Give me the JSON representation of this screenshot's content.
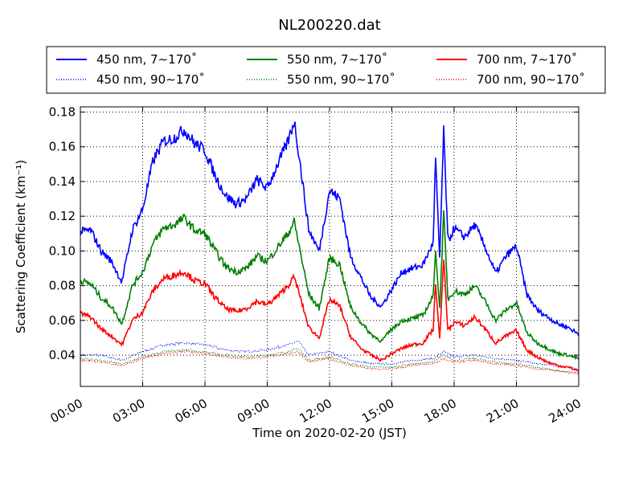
{
  "chart_data": {
    "type": "line",
    "title": "NL200220.dat",
    "xlabel": "Time on 2020-02-20 (JST)",
    "ylabel": "Scattering Coefficient (km⁻¹)",
    "xlim": [
      0,
      24
    ],
    "ylim": [
      0.022,
      0.183
    ],
    "x_ticks": [
      "00:00",
      "03:00",
      "06:00",
      "09:00",
      "12:00",
      "15:00",
      "18:00",
      "21:00",
      "24:00"
    ],
    "y_ticks": [
      "0.04",
      "0.06",
      "0.08",
      "0.10",
      "0.12",
      "0.14",
      "0.16",
      "0.18"
    ],
    "grid": true,
    "legend_position": "top",
    "series": [
      {
        "name": "450 nm, 7∼170˚",
        "color": "#0000ff",
        "style": "solid",
        "x": [
          0,
          0.5,
          1,
          1.5,
          2,
          2.5,
          3,
          3.5,
          4,
          4.5,
          5,
          5.5,
          6,
          6.5,
          7,
          7.5,
          8,
          8.5,
          9,
          9.5,
          10,
          10.3,
          10.5,
          11,
          11.5,
          12,
          12.5,
          13,
          13.5,
          14,
          14.5,
          15,
          15.5,
          16,
          16.5,
          17,
          17.1,
          17.3,
          17.5,
          17.7,
          18,
          18.5,
          19,
          19.5,
          20,
          20.5,
          21,
          21.5,
          22,
          22.5,
          23,
          23.5,
          24
        ],
        "y": [
          0.111,
          0.112,
          0.1,
          0.094,
          0.082,
          0.112,
          0.124,
          0.152,
          0.163,
          0.165,
          0.17,
          0.162,
          0.158,
          0.143,
          0.132,
          0.127,
          0.13,
          0.141,
          0.136,
          0.15,
          0.163,
          0.175,
          0.158,
          0.112,
          0.1,
          0.135,
          0.13,
          0.097,
          0.085,
          0.073,
          0.068,
          0.078,
          0.088,
          0.09,
          0.092,
          0.105,
          0.155,
          0.095,
          0.17,
          0.105,
          0.113,
          0.108,
          0.115,
          0.102,
          0.087,
          0.097,
          0.103,
          0.075,
          0.066,
          0.062,
          0.058,
          0.056,
          0.052
        ]
      },
      {
        "name": "550 nm, 7∼170˚",
        "color": "#008000",
        "style": "solid",
        "x": [
          0,
          0.5,
          1,
          1.5,
          2,
          2.5,
          3,
          3.5,
          4,
          4.5,
          5,
          5.5,
          6,
          6.5,
          7,
          7.5,
          8,
          8.5,
          9,
          9.5,
          10,
          10.3,
          10.5,
          11,
          11.5,
          12,
          12.5,
          13,
          13.5,
          14,
          14.5,
          15,
          15.5,
          16,
          16.5,
          17,
          17.1,
          17.3,
          17.5,
          17.7,
          18,
          18.5,
          19,
          19.5,
          20,
          20.5,
          21,
          21.5,
          22,
          22.5,
          23,
          23.5,
          24
        ],
        "y": [
          0.083,
          0.081,
          0.073,
          0.068,
          0.058,
          0.08,
          0.088,
          0.104,
          0.113,
          0.115,
          0.119,
          0.112,
          0.11,
          0.1,
          0.091,
          0.088,
          0.09,
          0.097,
          0.094,
          0.102,
          0.11,
          0.117,
          0.105,
          0.075,
          0.067,
          0.096,
          0.092,
          0.068,
          0.059,
          0.052,
          0.048,
          0.055,
          0.06,
          0.061,
          0.063,
          0.074,
          0.103,
          0.066,
          0.122,
          0.072,
          0.077,
          0.075,
          0.08,
          0.071,
          0.06,
          0.066,
          0.07,
          0.053,
          0.047,
          0.044,
          0.041,
          0.04,
          0.038
        ]
      },
      {
        "name": "700 nm, 7∼170˚",
        "color": "#ff0000",
        "style": "solid",
        "x": [
          0,
          0.5,
          1,
          1.5,
          2,
          2.5,
          3,
          3.5,
          4,
          4.5,
          5,
          5.5,
          6,
          6.5,
          7,
          7.5,
          8,
          8.5,
          9,
          9.5,
          10,
          10.3,
          10.5,
          11,
          11.5,
          12,
          12.5,
          13,
          13.5,
          14,
          14.5,
          15,
          15.5,
          16,
          16.5,
          17,
          17.1,
          17.3,
          17.5,
          17.7,
          18,
          18.5,
          19,
          19.5,
          20,
          20.5,
          21,
          21.5,
          22,
          22.5,
          23,
          23.5,
          24
        ],
        "y": [
          0.064,
          0.062,
          0.055,
          0.051,
          0.046,
          0.06,
          0.065,
          0.077,
          0.084,
          0.086,
          0.088,
          0.083,
          0.081,
          0.073,
          0.067,
          0.065,
          0.067,
          0.071,
          0.069,
          0.074,
          0.08,
          0.085,
          0.077,
          0.056,
          0.05,
          0.072,
          0.068,
          0.051,
          0.044,
          0.04,
          0.037,
          0.041,
          0.044,
          0.046,
          0.047,
          0.055,
          0.083,
          0.049,
          0.095,
          0.054,
          0.059,
          0.057,
          0.062,
          0.055,
          0.047,
          0.051,
          0.054,
          0.043,
          0.039,
          0.036,
          0.034,
          0.033,
          0.031
        ]
      },
      {
        "name": "450 nm, 90∼170˚",
        "color": "#0000ff",
        "style": "dotted",
        "x": [
          0,
          1,
          2,
          3,
          4,
          5,
          6,
          7,
          8,
          9,
          10,
          10.5,
          11,
          12,
          13,
          14,
          15,
          16,
          17,
          17.5,
          18,
          19,
          20,
          21,
          22,
          23,
          24
        ],
        "y": [
          0.04,
          0.04,
          0.037,
          0.042,
          0.046,
          0.047,
          0.046,
          0.043,
          0.042,
          0.043,
          0.046,
          0.048,
          0.04,
          0.042,
          0.037,
          0.035,
          0.035,
          0.037,
          0.038,
          0.042,
          0.039,
          0.04,
          0.038,
          0.037,
          0.035,
          0.034,
          0.032
        ]
      },
      {
        "name": "550 nm, 90∼170˚",
        "color": "#008000",
        "style": "dotted",
        "x": [
          0,
          1,
          2,
          3,
          4,
          5,
          6,
          7,
          8,
          9,
          10,
          10.5,
          11,
          12,
          13,
          14,
          15,
          16,
          17,
          17.5,
          18,
          19,
          20,
          21,
          22,
          23,
          24
        ],
        "y": [
          0.038,
          0.037,
          0.035,
          0.039,
          0.042,
          0.043,
          0.042,
          0.04,
          0.039,
          0.04,
          0.042,
          0.044,
          0.037,
          0.039,
          0.035,
          0.033,
          0.033,
          0.035,
          0.036,
          0.04,
          0.037,
          0.038,
          0.036,
          0.035,
          0.033,
          0.031,
          0.03
        ]
      },
      {
        "name": "700 nm, 90∼170˚",
        "color": "#ff0000",
        "style": "dotted",
        "x": [
          0,
          1,
          2,
          3,
          4,
          5,
          6,
          7,
          8,
          9,
          10,
          10.5,
          11,
          12,
          13,
          14,
          15,
          16,
          17,
          17.5,
          18,
          19,
          20,
          21,
          22,
          23,
          24
        ],
        "y": [
          0.037,
          0.036,
          0.034,
          0.038,
          0.041,
          0.042,
          0.041,
          0.039,
          0.038,
          0.039,
          0.041,
          0.042,
          0.036,
          0.038,
          0.034,
          0.032,
          0.032,
          0.034,
          0.035,
          0.038,
          0.036,
          0.037,
          0.035,
          0.034,
          0.032,
          0.031,
          0.029
        ]
      }
    ]
  }
}
